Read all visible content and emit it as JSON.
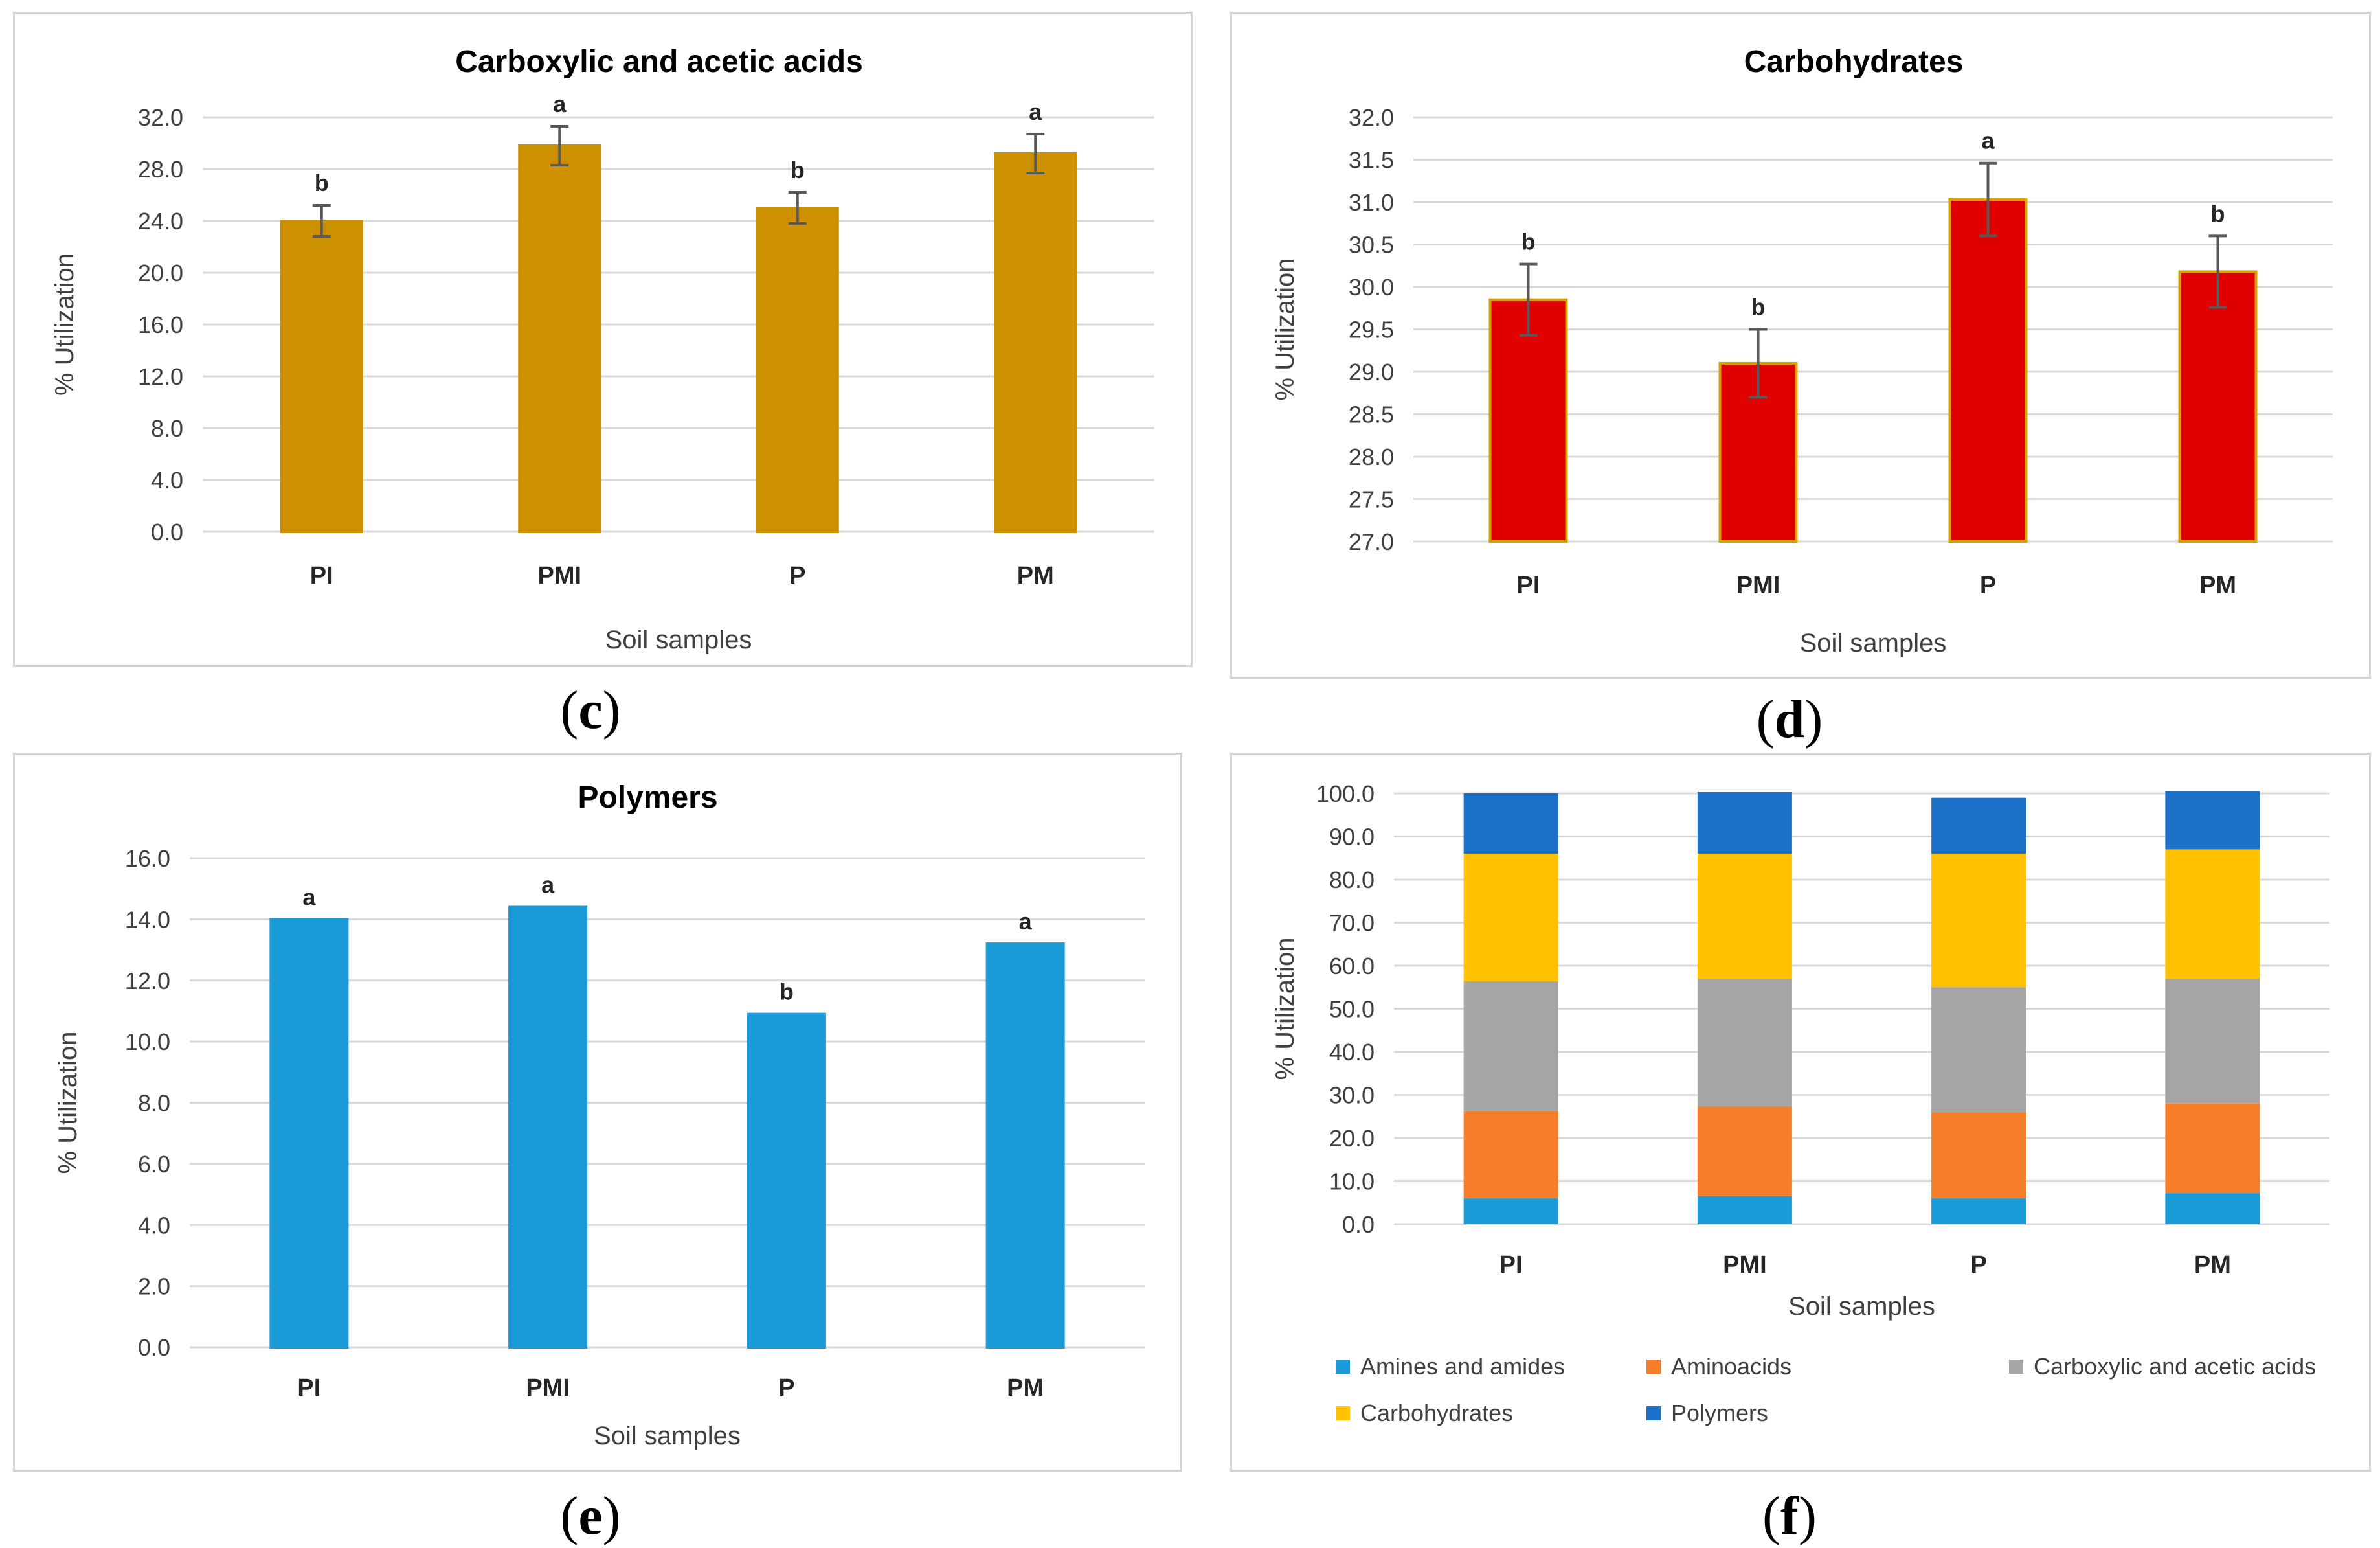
{
  "chart_data": [
    {
      "id": "c",
      "type": "bar",
      "caption_letter": "c",
      "title": "Carboxylic and acetic acids",
      "xlabel": "Soil samples",
      "ylabel": "% Utilization",
      "categories": [
        "PI",
        "PMI",
        "P",
        "PM"
      ],
      "values": [
        24.0,
        29.8,
        25.0,
        29.2
      ],
      "errors": [
        1.2,
        1.5,
        1.2,
        1.5
      ],
      "sig_labels": [
        "b",
        "a",
        "b",
        "a"
      ],
      "ylim": [
        0,
        32
      ],
      "yticks": [
        "0.0",
        "4.0",
        "8.0",
        "12.0",
        "16.0",
        "20.0",
        "24.0",
        "28.0",
        "32.0"
      ],
      "color": "#cc9000",
      "stroke": "#cc9000",
      "grid": true
    },
    {
      "id": "d",
      "type": "bar",
      "caption_letter": "d",
      "title": "Carbohydrates",
      "xlabel": "Soil samples",
      "ylabel": "% Utilization",
      "categories": [
        "PI",
        "PMI",
        "P",
        "PM"
      ],
      "values": [
        29.85,
        29.1,
        31.03,
        30.18
      ],
      "errors": [
        0.42,
        0.4,
        0.43,
        0.42
      ],
      "sig_labels": [
        "b",
        "b",
        "a",
        "b"
      ],
      "ylim": [
        27.0,
        32.0
      ],
      "yticks": [
        "27.0",
        "27.5",
        "28.0",
        "28.5",
        "29.0",
        "29.5",
        "30.0",
        "30.5",
        "31.0",
        "31.5",
        "32.0"
      ],
      "color": "#e00000",
      "stroke": "#d4a300",
      "grid": true
    },
    {
      "id": "e",
      "type": "bar",
      "caption_letter": "e",
      "title": "Polymers",
      "xlabel": "Soil samples",
      "ylabel": "% Utilization",
      "categories": [
        "PI",
        "PMI",
        "P",
        "PM"
      ],
      "values": [
        14.0,
        14.4,
        10.9,
        13.2
      ],
      "errors": [],
      "sig_labels": [
        "a",
        "a",
        "b",
        "a"
      ],
      "ylim": [
        0,
        16
      ],
      "yticks": [
        "0.0",
        "2.0",
        "4.0",
        "6.0",
        "8.0",
        "10.0",
        "12.0",
        "14.0",
        "16.0"
      ],
      "color": "#1a9ad6",
      "stroke": "#1a9ad6",
      "grid": true
    },
    {
      "id": "f",
      "type": "stacked-bar",
      "caption_letter": "f",
      "title": "",
      "xlabel": "Soil samples",
      "ylabel": "% Utilization",
      "categories": [
        "PI",
        "PMI",
        "P",
        "PM"
      ],
      "series": [
        {
          "name": "Amines and amides",
          "color": "#1a9ad6",
          "values": [
            6.0,
            6.5,
            6.0,
            7.2
          ]
        },
        {
          "name": "Aminoacids",
          "color": "#f67e2a",
          "values": [
            20.2,
            20.8,
            20.0,
            20.8
          ]
        },
        {
          "name": "Carboxylic and acetic acids",
          "color": "#a5a5a5",
          "values": [
            30.2,
            29.7,
            29.0,
            29.0
          ]
        },
        {
          "name": "Carbohydrates",
          "color": "#ffc000",
          "values": [
            29.6,
            29.0,
            31.0,
            30.0
          ]
        },
        {
          "name": "Polymers",
          "color": "#1c70c8",
          "values": [
            14.0,
            14.3,
            13.0,
            13.5
          ]
        }
      ],
      "ylim": [
        0,
        100
      ],
      "yticks": [
        "0.0",
        "10.0",
        "20.0",
        "30.0",
        "40.0",
        "50.0",
        "60.0",
        "70.0",
        "80.0",
        "90.0",
        "100.0"
      ],
      "legend_position": "bottom",
      "grid": true
    }
  ]
}
